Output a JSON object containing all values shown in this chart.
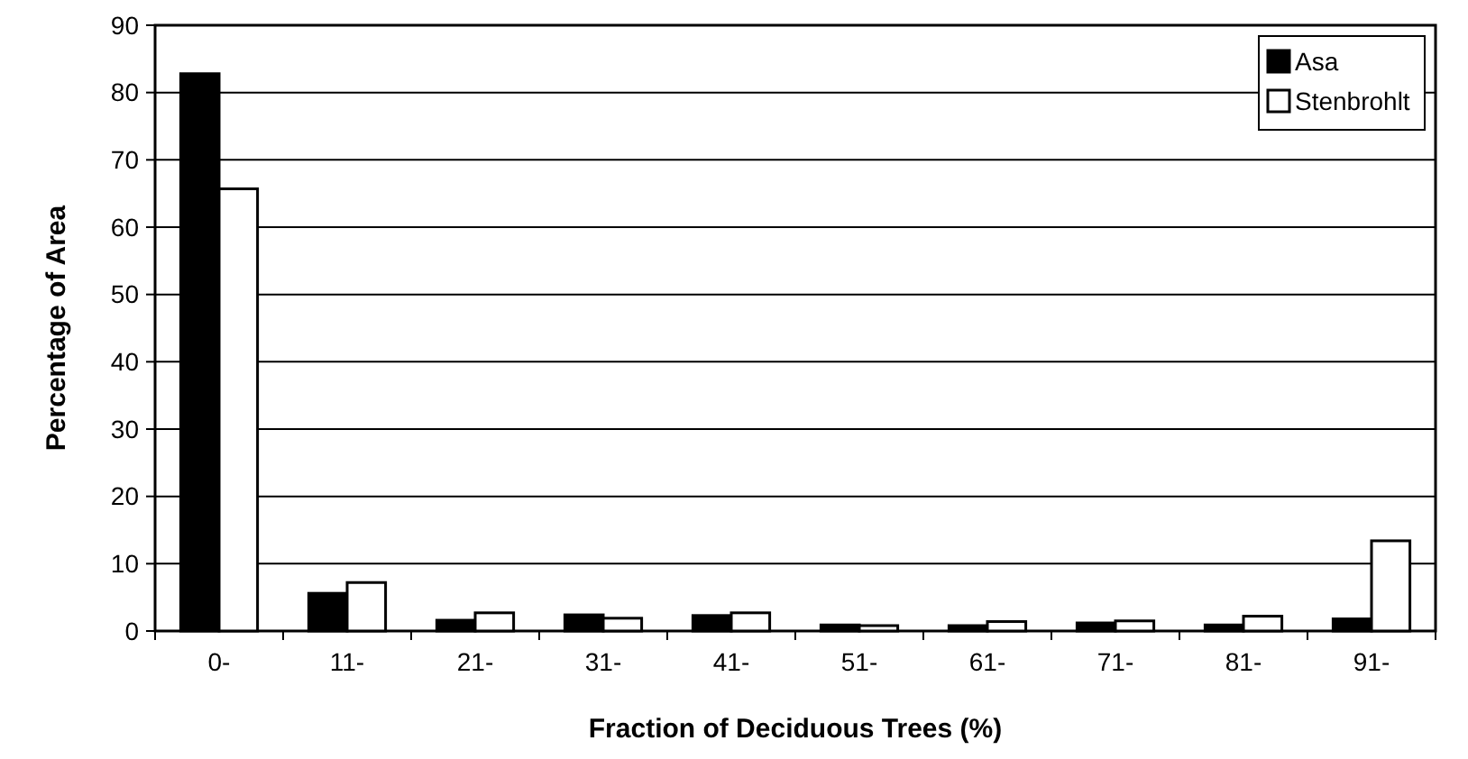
{
  "chart_data": {
    "type": "bar",
    "xlabel": "Fraction of Deciduous Trees (%)",
    "ylabel": "Percentage of Area",
    "categories": [
      "0-",
      "11-",
      "21-",
      "31-",
      "41-",
      "51-",
      "61-",
      "71-",
      "81-",
      "91-"
    ],
    "series": [
      {
        "name": "Asa",
        "color": "#000000",
        "values": [
          82.8,
          5.6,
          1.6,
          2.4,
          2.3,
          0.9,
          0.8,
          1.2,
          0.9,
          1.8
        ]
      },
      {
        "name": "Stenbrohlt",
        "color": "#ffffff",
        "values": [
          65.7,
          7.2,
          2.7,
          1.9,
          2.7,
          0.8,
          1.4,
          1.5,
          2.2,
          13.4
        ]
      }
    ],
    "ylim": [
      0,
      90
    ],
    "yticks": [
      0,
      10,
      20,
      30,
      40,
      50,
      60,
      70,
      80,
      90
    ],
    "grid": "y",
    "legend": "top right"
  }
}
